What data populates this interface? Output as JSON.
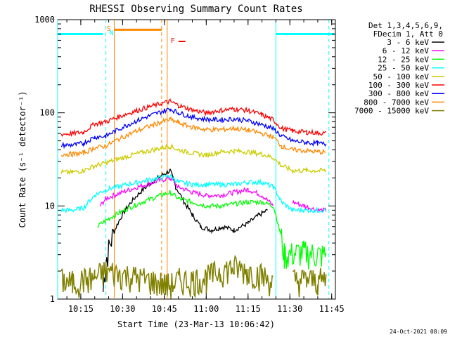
{
  "chart_data": {
    "type": "line",
    "title": "RHESSI Observing Summary Count Rates",
    "xlabel": "Start Time (23-Mar-13 10:06:42)",
    "ylabel": "Count Rate (s⁻¹ detector⁻¹)",
    "y_scale": "log",
    "ylim": [
      1,
      1000
    ],
    "xlim": [
      "10:06:42",
      "11:46:20"
    ],
    "x_ticks": [
      "10:15",
      "10:30",
      "10:45",
      "11:00",
      "11:15",
      "11:30",
      "11:45"
    ],
    "y_ticks": [
      "1",
      "10",
      "100",
      "1000"
    ],
    "grid": false,
    "legend_header": [
      "Det 1,3,4,5,6,9,",
      "FDecim 1, Att 0"
    ],
    "legend_position": "right",
    "series": [
      {
        "name": "3 - 6 keV",
        "color": "#000000",
        "points": [
          [
            "10:08",
            null
          ],
          [
            "10:15",
            null
          ],
          [
            "10:20",
            null
          ],
          [
            "10:23",
            1.2
          ],
          [
            "10:24",
            2.5
          ],
          [
            "10:47",
            24
          ],
          [
            "10:49",
            16
          ],
          [
            "10:52",
            11
          ],
          [
            "10:55",
            8
          ],
          [
            "10:58",
            6
          ],
          [
            "11:02",
            5.5
          ],
          [
            "11:06",
            6
          ],
          [
            "11:10",
            5.5
          ],
          [
            "11:15",
            6.5
          ],
          [
            "11:19",
            8
          ],
          [
            "11:22",
            9
          ],
          [
            "11:24",
            null
          ]
        ]
      },
      {
        "name": "6 - 12 keV",
        "color": "#ff00ff",
        "points": [
          [
            "10:08",
            null
          ],
          [
            "10:20",
            null
          ],
          [
            "10:22",
            10
          ],
          [
            "10:24",
            12
          ],
          [
            "10:47",
            20
          ],
          [
            "10:50",
            16
          ],
          [
            "10:55",
            14
          ],
          [
            "11:00",
            13
          ],
          [
            "11:05",
            13
          ],
          [
            "11:10",
            14
          ],
          [
            "11:15",
            15
          ],
          [
            "11:20",
            13
          ],
          [
            "11:24",
            10
          ],
          [
            "11:27",
            null
          ],
          [
            "11:31",
            11
          ],
          [
            "11:35",
            10
          ],
          [
            "11:40",
            9
          ],
          [
            "11:43",
            9
          ]
        ]
      },
      {
        "name": "12 - 25 keV",
        "color": "#00ff00",
        "points": [
          [
            "10:08",
            null
          ],
          [
            "10:20",
            null
          ],
          [
            "10:21",
            6
          ],
          [
            "10:24",
            7
          ],
          [
            "10:47",
            14
          ],
          [
            "10:50",
            12
          ],
          [
            "10:55",
            11
          ],
          [
            "11:00",
            10
          ],
          [
            "11:05",
            10
          ],
          [
            "11:10",
            10.5
          ],
          [
            "11:15",
            11
          ],
          [
            "11:20",
            11
          ],
          [
            "11:24",
            10
          ],
          [
            "11:26",
            6
          ],
          [
            "11:28",
            3
          ],
          [
            "11:35",
            3.2
          ],
          [
            "11:40",
            3
          ],
          [
            "11:43",
            3
          ]
        ]
      },
      {
        "name": "25 - 50 keV",
        "color": "#00ffff",
        "points": [
          [
            "10:08",
            9
          ],
          [
            "10:12",
            9
          ],
          [
            "10:16",
            9.5
          ],
          [
            "10:20",
            13
          ],
          [
            "10:24",
            15
          ],
          [
            "10:47",
            21
          ],
          [
            "10:50",
            18
          ],
          [
            "10:55",
            17
          ],
          [
            "11:00",
            17
          ],
          [
            "11:05",
            17
          ],
          [
            "11:10",
            17
          ],
          [
            "11:15",
            18
          ],
          [
            "11:20",
            18
          ],
          [
            "11:24",
            16
          ],
          [
            "11:27",
            11
          ],
          [
            "11:31",
            9
          ],
          [
            "11:35",
            9
          ],
          [
            "11:40",
            9
          ],
          [
            "11:43",
            9
          ]
        ]
      },
      {
        "name": "50 - 100 keV",
        "color": "#cccc00",
        "points": [
          [
            "10:08",
            23
          ],
          [
            "10:12",
            23
          ],
          [
            "10:16",
            24
          ],
          [
            "10:20",
            27
          ],
          [
            "10:24",
            29
          ],
          [
            "10:47",
            44
          ],
          [
            "10:50",
            40
          ],
          [
            "10:55",
            37
          ],
          [
            "11:00",
            35
          ],
          [
            "11:05",
            38
          ],
          [
            "11:10",
            39
          ],
          [
            "11:15",
            38
          ],
          [
            "11:20",
            36
          ],
          [
            "11:24",
            33
          ],
          [
            "11:27",
            27
          ],
          [
            "11:31",
            24
          ],
          [
            "11:36",
            24
          ],
          [
            "11:40",
            24
          ],
          [
            "11:43",
            24
          ]
        ]
      },
      {
        "name": "100 - 300 keV",
        "color": "#ff0000",
        "points": [
          [
            "10:08",
            59
          ],
          [
            "10:12",
            60
          ],
          [
            "10:16",
            62
          ],
          [
            "10:20",
            76
          ],
          [
            "10:24",
            80
          ],
          [
            "10:47",
            133
          ],
          [
            "10:50",
            120
          ],
          [
            "10:55",
            107
          ],
          [
            "11:00",
            100
          ],
          [
            "11:05",
            106
          ],
          [
            "11:10",
            110
          ],
          [
            "11:15",
            106
          ],
          [
            "11:20",
            95
          ],
          [
            "11:24",
            84
          ],
          [
            "11:27",
            68
          ],
          [
            "11:31",
            64
          ],
          [
            "11:36",
            62
          ],
          [
            "11:40",
            61
          ],
          [
            "11:43",
            60
          ]
        ]
      },
      {
        "name": "300 - 800 keV",
        "color": "#0000ff",
        "points": [
          [
            "10:08",
            45
          ],
          [
            "10:12",
            45
          ],
          [
            "10:16",
            47
          ],
          [
            "10:20",
            55
          ],
          [
            "10:24",
            56
          ],
          [
            "10:47",
            110
          ],
          [
            "10:50",
            100
          ],
          [
            "10:55",
            90
          ],
          [
            "11:00",
            85
          ],
          [
            "11:05",
            84
          ],
          [
            "11:10",
            86
          ],
          [
            "11:15",
            82
          ],
          [
            "11:20",
            75
          ],
          [
            "11:24",
            68
          ],
          [
            "11:27",
            56
          ],
          [
            "11:31",
            50
          ],
          [
            "11:36",
            48
          ],
          [
            "11:40",
            47
          ],
          [
            "11:43",
            46
          ]
        ]
      },
      {
        "name": "800 - 7000 keV",
        "color": "#ff8800",
        "points": [
          [
            "10:08",
            36
          ],
          [
            "10:12",
            36
          ],
          [
            "10:16",
            37
          ],
          [
            "10:20",
            42
          ],
          [
            "10:24",
            44
          ],
          [
            "10:47",
            85
          ],
          [
            "10:50",
            78
          ],
          [
            "10:55",
            70
          ],
          [
            "11:00",
            66
          ],
          [
            "11:05",
            66
          ],
          [
            "11:10",
            68
          ],
          [
            "11:15",
            65
          ],
          [
            "11:20",
            60
          ],
          [
            "11:24",
            55
          ],
          [
            "11:27",
            44
          ],
          [
            "11:31",
            40
          ],
          [
            "11:36",
            39
          ],
          [
            "11:40",
            38
          ],
          [
            "11:43",
            38
          ]
        ]
      },
      {
        "name": "7000 - 15000 keV",
        "color": "#808000",
        "points": [
          [
            "10:08",
            1.6
          ],
          [
            "10:12",
            1.5
          ],
          [
            "10:16",
            1.6
          ],
          [
            "10:20",
            1.7
          ],
          [
            "10:24",
            2
          ],
          [
            "10:47",
            1.4
          ],
          [
            "10:50",
            1.6
          ],
          [
            "10:55",
            1.6
          ],
          [
            "11:00",
            1.7
          ],
          [
            "11:05",
            2
          ],
          [
            "11:10",
            2.2
          ],
          [
            "11:15",
            2
          ],
          [
            "11:20",
            1.8
          ],
          [
            "11:24",
            1.5
          ],
          [
            "11:27",
            null
          ],
          [
            "11:31",
            1.6
          ],
          [
            "11:36",
            1.6
          ],
          [
            "11:40",
            1.6
          ],
          [
            "11:43",
            1.6
          ]
        ]
      }
    ],
    "flags": [
      {
        "label": "S",
        "color": "#ff8800",
        "time": "10:25"
      },
      {
        "label": "N",
        "color": "#00ffff",
        "time": "10:26"
      },
      {
        "label": "F",
        "color": "#ff0000",
        "time": "10:48"
      }
    ],
    "bands": [
      {
        "color": "#00ffff",
        "from": "10:06:42",
        "to": "10:23",
        "level": 700
      },
      {
        "color": "#ff8800",
        "from": "10:27",
        "to": "10:44",
        "level": 780
      },
      {
        "color": "#00ffff",
        "from": "11:25",
        "to": "11:46",
        "level": 700
      }
    ],
    "vertical_lines": [
      {
        "color": "#00ffff",
        "time": "10:06:42",
        "style": "solid"
      },
      {
        "color": "#00ffff",
        "time": "10:24",
        "style": "dashed"
      },
      {
        "color": "#ff8800",
        "time": "10:27",
        "style": "solid"
      },
      {
        "color": "#ff8800",
        "time": "10:44",
        "style": "dashed"
      },
      {
        "color": "#ff8800",
        "time": "10:46",
        "style": "solid"
      },
      {
        "color": "#00ffff",
        "time": "11:25",
        "style": "solid"
      },
      {
        "color": "#00ffff",
        "time": "11:44",
        "style": "dashed"
      }
    ]
  },
  "footer_timestamp": "24-Oct-2021 08:09"
}
